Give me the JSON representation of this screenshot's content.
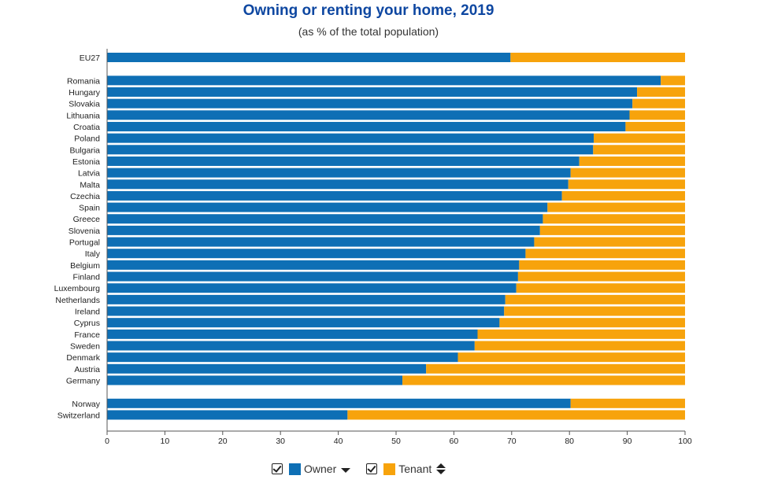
{
  "chart_data": {
    "type": "bar",
    "orientation": "horizontal",
    "stacked": true,
    "title": "Owning or renting your home, 2019",
    "subtitle": "(as % of the total population)",
    "xlim": [
      0,
      100
    ],
    "xticks": [
      "0",
      "10",
      "20",
      "30",
      "40",
      "50",
      "60",
      "70",
      "80",
      "90",
      "100"
    ],
    "grid": false,
    "legend_position": "bottom",
    "groups": [
      [
        "EU27"
      ],
      [
        "Romania",
        "Hungary",
        "Slovakia",
        "Lithuania",
        "Croatia",
        "Poland",
        "Bulgaria",
        "Estonia",
        "Latvia",
        "Malta",
        "Czechia",
        "Spain",
        "Greece",
        "Slovenia",
        "Portugal",
        "Italy",
        "Belgium",
        "Finland",
        "Luxembourg",
        "Netherlands",
        "Ireland",
        "Cyprus",
        "France",
        "Sweden",
        "Denmark",
        "Austria",
        "Germany"
      ],
      [
        "Norway",
        "Switzerland"
      ]
    ],
    "categories": [
      "EU27",
      "Romania",
      "Hungary",
      "Slovakia",
      "Lithuania",
      "Croatia",
      "Poland",
      "Bulgaria",
      "Estonia",
      "Latvia",
      "Malta",
      "Czechia",
      "Spain",
      "Greece",
      "Slovenia",
      "Portugal",
      "Italy",
      "Belgium",
      "Finland",
      "Luxembourg",
      "Netherlands",
      "Ireland",
      "Cyprus",
      "France",
      "Sweden",
      "Denmark",
      "Austria",
      "Germany",
      "Norway",
      "Switzerland"
    ],
    "series": [
      {
        "name": "Owner",
        "color": "#0e6fb5",
        "values": [
          69.8,
          95.8,
          91.7,
          90.9,
          90.4,
          89.7,
          84.2,
          84.1,
          81.7,
          80.2,
          79.8,
          78.7,
          76.2,
          75.4,
          74.9,
          73.9,
          72.4,
          71.3,
          71.1,
          70.8,
          68.9,
          68.7,
          67.9,
          64.1,
          63.6,
          60.7,
          55.2,
          51.1,
          80.2,
          41.6
        ]
      },
      {
        "name": "Tenant",
        "color": "#f7a30c",
        "values": [
          30.2,
          4.2,
          8.3,
          9.1,
          9.6,
          10.3,
          15.8,
          15.9,
          18.3,
          19.8,
          20.2,
          21.3,
          23.8,
          24.6,
          25.1,
          26.1,
          27.6,
          28.7,
          28.9,
          29.2,
          31.1,
          31.3,
          32.1,
          35.9,
          36.4,
          39.3,
          44.8,
          48.9,
          19.8,
          58.4
        ]
      }
    ]
  },
  "legend": {
    "items": [
      {
        "label": "Owner",
        "checked": true,
        "sort_icon": "sort-descending-icon"
      },
      {
        "label": "Tenant",
        "checked": true,
        "sort_icon": "sort-both-icon"
      }
    ]
  }
}
